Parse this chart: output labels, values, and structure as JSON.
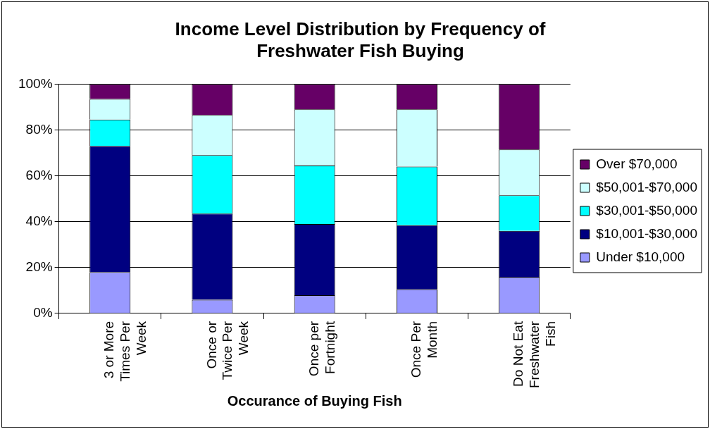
{
  "chart_data": {
    "type": "bar",
    "stacked": true,
    "title": "Income Level Distribution by Frequency of Freshwater Fish Buying",
    "xlabel": "Occurance of Buying Fish",
    "categories": [
      "3 or More Times Per Week",
      "Once or Twice Per Week",
      "Once per Fortnight",
      "Once Per Month",
      "Do Not Eat Freshwater Fish"
    ],
    "series": [
      {
        "name": "Under $10,000",
        "color": "#9999ff",
        "values": [
          18,
          6,
          8,
          10.5,
          16
        ]
      },
      {
        "name": "$10,001-$30,000",
        "color": "#000080",
        "values": [
          55,
          37.5,
          31,
          28,
          20
        ]
      },
      {
        "name": "$30,001-$50,000",
        "color": "#00ffff",
        "values": [
          11.5,
          25.5,
          25.5,
          25.5,
          15.5
        ]
      },
      {
        "name": "$50,001-$70,000",
        "color": "#ccffff",
        "values": [
          9,
          17.5,
          24.5,
          25,
          20
        ]
      },
      {
        "name": "Over $70,000",
        "color": "#660066",
        "values": [
          6.5,
          13.5,
          11,
          11,
          28.5
        ]
      }
    ],
    "ylim": [
      0,
      100
    ],
    "yticks": [
      {
        "value": 0,
        "label": "0%"
      },
      {
        "value": 20,
        "label": "20%"
      },
      {
        "value": 40,
        "label": "40%"
      },
      {
        "value": 60,
        "label": "60%"
      },
      {
        "value": 80,
        "label": "80%"
      },
      {
        "value": 100,
        "label": "100%"
      }
    ],
    "grid": "y",
    "legend": "right"
  }
}
